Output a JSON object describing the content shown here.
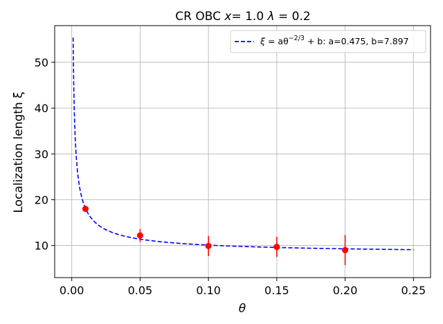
{
  "chart_data": {
    "type": "scatter",
    "title": "CR OBC x= 1.0 λ = 0.2",
    "title_parts": {
      "pre": "CR OBC ",
      "x_sym": "x",
      "x_val": "= 1.0 ",
      "lam_sym": "λ",
      "lam_val": " = 0.2"
    },
    "xlabel": "θ",
    "ylabel": "Localization length ξ",
    "xlim": [
      -0.0125,
      0.2625
    ],
    "ylim": [
      3,
      58
    ],
    "x_ticks": [
      0.0,
      0.05,
      0.1,
      0.15,
      0.2,
      0.25
    ],
    "x_tick_labels": [
      "0.00",
      "0.05",
      "0.10",
      "0.15",
      "0.20",
      "0.25"
    ],
    "y_ticks": [
      10,
      20,
      30,
      40,
      50
    ],
    "y_tick_labels": [
      "10",
      "20",
      "30",
      "40",
      "50"
    ],
    "grid": true,
    "legend_position": "upper-right",
    "series": [
      {
        "name": "ξ = aθ^{-2/3} + b: a=0.475, b=7.897",
        "kind": "fit-line",
        "style": "dashed",
        "color": "#0000ff",
        "a": 0.475,
        "b": 7.897,
        "x_range": [
          0.001,
          0.25
        ]
      },
      {
        "kind": "errorbar",
        "color": "#ff0000",
        "x": [
          0.01,
          0.05,
          0.1,
          0.15,
          0.2
        ],
        "y": [
          18.0,
          12.2,
          9.9,
          9.7,
          9.0
        ],
        "yerr": [
          0.6,
          1.4,
          2.2,
          2.2,
          3.3
        ]
      }
    ],
    "legend": {
      "sym": "ξ",
      "eq": " = aθ",
      "exp": "−2/3",
      "tail": " + b: a=0.475, b=7.897"
    }
  }
}
